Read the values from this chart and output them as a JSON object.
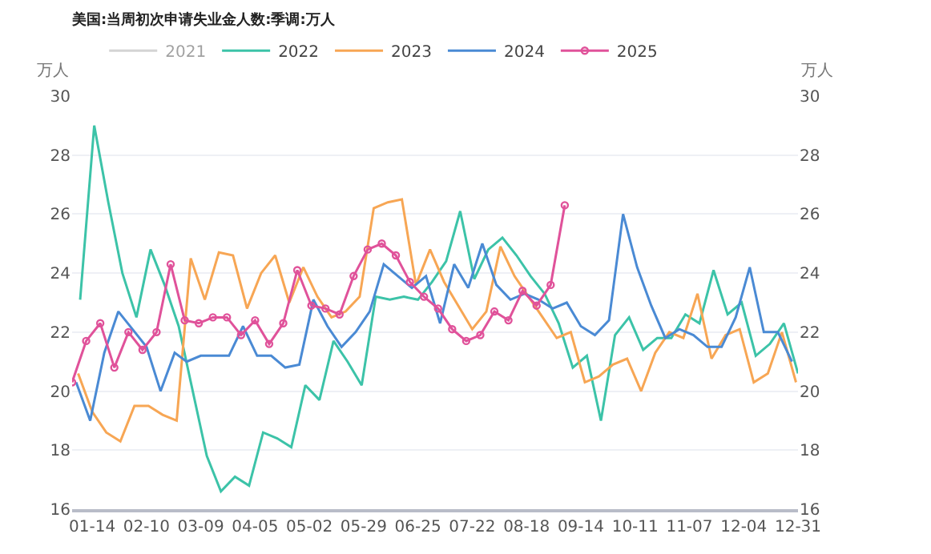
{
  "chart_data": {
    "type": "line",
    "title": "美国:当周初次申请失业金人数:季调:万人",
    "ylabel": "万人",
    "y2label": "万人",
    "xlim": [
      "--01-04",
      "--12-31"
    ],
    "xticks": [
      {
        "value": "--01-14",
        "label": "01-14"
      },
      {
        "value": "--02-10",
        "label": "02-10"
      },
      {
        "value": "--03-09",
        "label": "03-09"
      },
      {
        "value": "--04-05",
        "label": "04-05"
      },
      {
        "value": "--05-02",
        "label": "05-02"
      },
      {
        "value": "--05-29",
        "label": "05-29"
      },
      {
        "value": "--06-25",
        "label": "06-25"
      },
      {
        "value": "--07-22",
        "label": "07-22"
      },
      {
        "value": "--08-18",
        "label": "08-18"
      },
      {
        "value": "--09-14",
        "label": "09-14"
      },
      {
        "value": "--10-11",
        "label": "10-11"
      },
      {
        "value": "--11-07",
        "label": "11-07"
      },
      {
        "value": "--12-04",
        "label": "12-04"
      },
      {
        "value": "--12-31",
        "label": "12-31"
      }
    ],
    "ylim": [
      16,
      30
    ],
    "yticks": [
      16,
      18,
      20,
      22,
      24,
      26,
      28,
      30
    ],
    "y2lim": [
      16,
      30
    ],
    "y2ticks": [
      16,
      18,
      20,
      22,
      24,
      26,
      28,
      30
    ],
    "grid": "y",
    "legend": "top",
    "marker": "none",
    "line_style": "solid",
    "series": [
      {
        "name": "2021",
        "color": "#a9a9a9"
      },
      {
        "name": "2022",
        "color": "#3cc3a8",
        "x": [
          "--01-08",
          "--01-15",
          "--01-22",
          "--01-29",
          "--02-05",
          "--02-12",
          "--02-19",
          "--02-26",
          "--03-05",
          "--03-12",
          "--03-19",
          "--03-26",
          "--04-02",
          "--04-09",
          "--04-16",
          "--04-23",
          "--04-30",
          "--05-07",
          "--05-14",
          "--05-21",
          "--05-28",
          "--06-04",
          "--06-11",
          "--06-18",
          "--06-25",
          "--07-02",
          "--07-09",
          "--07-16",
          "--07-23",
          "--07-30",
          "--08-06",
          "--08-13",
          "--08-20",
          "--08-27",
          "--09-03",
          "--09-10",
          "--09-17",
          "--09-24",
          "--10-01",
          "--10-08",
          "--10-15",
          "--10-22",
          "--10-29",
          "--11-05",
          "--11-12",
          "--11-19",
          "--11-26",
          "--12-03",
          "--12-10",
          "--12-17",
          "--12-24",
          "--12-31"
        ],
        "values": [
          23.1,
          29.0,
          26.4,
          24.0,
          22.5,
          24.8,
          23.6,
          22.2,
          20.0,
          17.8,
          16.6,
          17.1,
          16.8,
          18.6,
          18.4,
          18.1,
          20.2,
          19.7,
          21.7,
          21.0,
          20.2,
          23.2,
          23.1,
          23.2,
          23.1,
          23.7,
          24.4,
          26.1,
          23.8,
          24.8,
          25.2,
          24.6,
          23.9,
          23.3,
          22.3,
          20.8,
          21.2,
          19.0,
          21.9,
          22.5,
          21.4,
          21.8,
          21.8,
          22.6,
          22.3,
          24.1,
          22.6,
          23.0,
          21.2,
          21.6,
          22.3,
          20.6
        ]
      },
      {
        "name": "2023",
        "color": "#f7a654",
        "x": [
          "--01-07",
          "--01-14",
          "--01-21",
          "--01-28",
          "--02-04",
          "--02-11",
          "--02-18",
          "--02-25",
          "--03-04",
          "--03-11",
          "--03-18",
          "--03-25",
          "--04-01",
          "--04-08",
          "--04-15",
          "--04-22",
          "--04-29",
          "--05-06",
          "--05-13",
          "--05-20",
          "--05-27",
          "--06-03",
          "--06-10",
          "--06-17",
          "--06-24",
          "--07-01",
          "--07-08",
          "--07-15",
          "--07-22",
          "--07-29",
          "--08-05",
          "--08-12",
          "--08-19",
          "--08-26",
          "--09-02",
          "--09-09",
          "--09-16",
          "--09-23",
          "--09-30",
          "--10-07",
          "--10-14",
          "--10-21",
          "--10-28",
          "--11-04",
          "--11-11",
          "--11-18",
          "--11-25",
          "--12-02",
          "--12-09",
          "--12-16",
          "--12-23",
          "--12-30"
        ],
        "values": [
          20.6,
          19.3,
          18.6,
          18.3,
          19.5,
          19.5,
          19.2,
          19.0,
          24.5,
          23.1,
          24.7,
          24.6,
          22.8,
          24.0,
          24.6,
          23.0,
          24.2,
          23.2,
          22.5,
          22.7,
          23.2,
          26.2,
          26.4,
          26.5,
          23.6,
          24.8,
          23.7,
          22.9,
          22.1,
          22.7,
          24.9,
          23.9,
          23.2,
          22.5,
          21.8,
          22.0,
          20.3,
          20.5,
          20.9,
          21.1,
          20.0,
          21.3,
          22.0,
          21.8,
          23.3,
          21.1,
          21.9,
          22.1,
          20.3,
          20.6,
          22.0,
          20.3
        ]
      },
      {
        "name": "2024",
        "color": "#4a8ad4",
        "x": [
          "--01-06",
          "--01-13",
          "--01-20",
          "--01-27",
          "--02-03",
          "--02-10",
          "--02-17",
          "--02-24",
          "--03-02",
          "--03-09",
          "--03-16",
          "--03-23",
          "--03-30",
          "--04-06",
          "--04-13",
          "--04-20",
          "--04-27",
          "--05-04",
          "--05-11",
          "--05-18",
          "--05-25",
          "--06-01",
          "--06-08",
          "--06-15",
          "--06-22",
          "--06-29",
          "--07-06",
          "--07-13",
          "--07-20",
          "--07-27",
          "--08-03",
          "--08-10",
          "--08-17",
          "--08-24",
          "--08-31",
          "--09-07",
          "--09-14",
          "--09-21",
          "--09-28",
          "--10-05",
          "--10-12",
          "--10-19",
          "--10-26",
          "--11-02",
          "--11-09",
          "--11-16",
          "--11-23",
          "--11-30",
          "--12-07",
          "--12-14",
          "--12-21",
          "--12-28"
        ],
        "values": [
          20.3,
          19.0,
          21.3,
          22.7,
          22.1,
          21.5,
          20.0,
          21.3,
          21.0,
          21.2,
          21.2,
          21.2,
          22.2,
          21.2,
          21.2,
          20.8,
          20.9,
          23.1,
          22.2,
          21.5,
          22.0,
          22.7,
          24.3,
          23.9,
          23.5,
          23.9,
          22.3,
          24.3,
          23.5,
          25.0,
          23.6,
          23.1,
          23.3,
          23.1,
          22.8,
          23.0,
          22.2,
          21.9,
          22.4,
          26.0,
          24.2,
          22.9,
          21.8,
          22.1,
          21.9,
          21.5,
          21.5,
          22.5,
          24.2,
          22.0,
          22.0,
          21.0
        ]
      },
      {
        "name": "2025",
        "color": "#e0529a",
        "marker": "circle",
        "x": [
          "--01-04",
          "--01-11",
          "--01-18",
          "--01-25",
          "--02-01",
          "--02-08",
          "--02-15",
          "--02-22",
          "--03-01",
          "--03-08",
          "--03-15",
          "--03-22",
          "--03-29",
          "--04-05",
          "--04-12",
          "--04-19",
          "--04-26",
          "--05-03",
          "--05-10",
          "--05-17",
          "--05-24",
          "--05-31",
          "--06-07",
          "--06-14",
          "--06-21",
          "--06-28",
          "--07-05",
          "--07-12",
          "--07-19",
          "--07-26",
          "--08-02",
          "--08-09",
          "--08-16",
          "--08-23",
          "--08-30",
          "--09-06"
        ],
        "values": [
          20.3,
          21.7,
          22.3,
          20.8,
          22.0,
          21.4,
          22.0,
          24.3,
          22.4,
          22.3,
          22.5,
          22.5,
          21.9,
          22.4,
          21.6,
          22.3,
          24.1,
          22.9,
          22.8,
          22.6,
          23.9,
          24.8,
          25.0,
          24.6,
          23.7,
          23.2,
          22.8,
          22.1,
          21.7,
          21.9,
          22.7,
          22.4,
          23.4,
          22.9,
          23.6,
          26.3
        ]
      }
    ]
  }
}
